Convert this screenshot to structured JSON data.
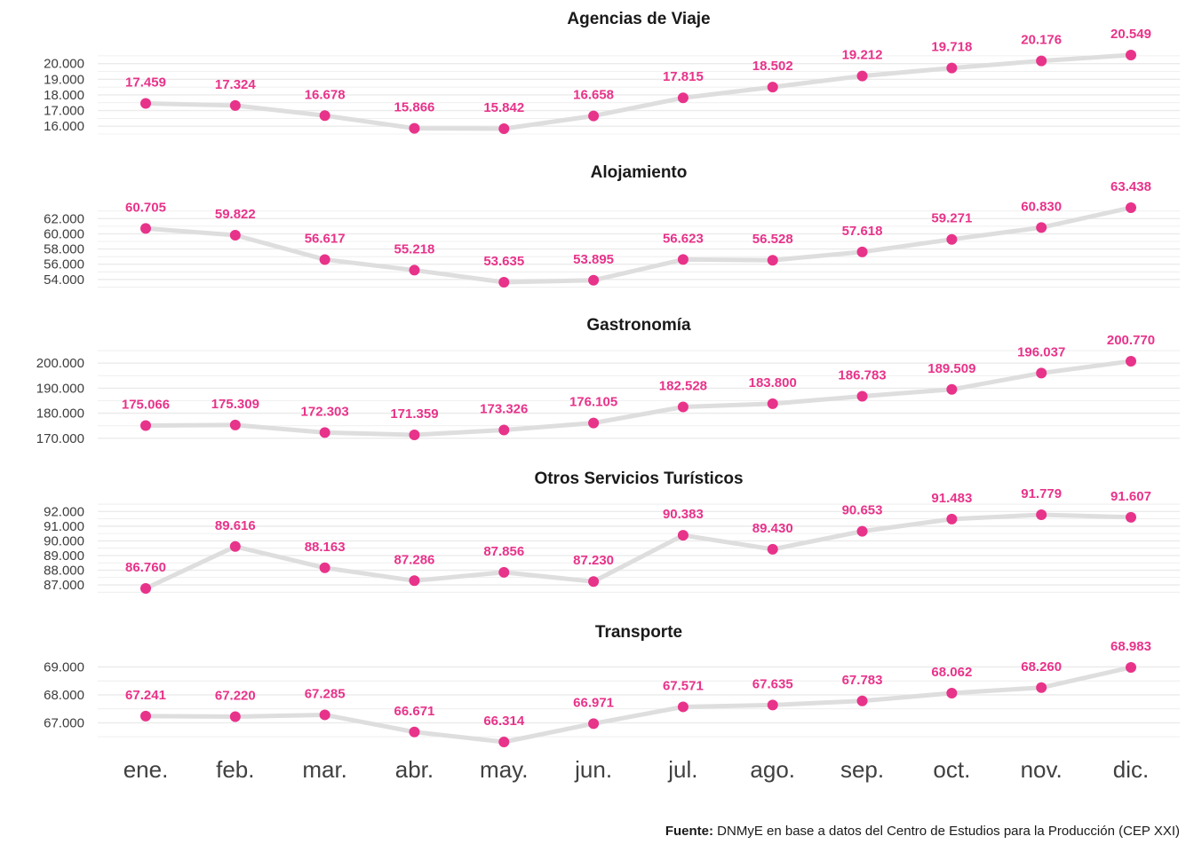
{
  "colors": {
    "point": "#e8338a",
    "label": "#e8338a",
    "line": "#dedede",
    "grid": "#ebebeb"
  },
  "source": {
    "label": "Fuente:",
    "text": " DNMyE en base a datos del Centro de Estudios para la Producción (CEP XXI)"
  },
  "chart_data": [
    {
      "type": "line",
      "title": "Agencias de Viaje",
      "categories": [
        "ene.",
        "feb.",
        "mar.",
        "abr.",
        "may.",
        "jun.",
        "jul.",
        "ago.",
        "sep.",
        "oct.",
        "nov.",
        "dic."
      ],
      "values": [
        17459,
        17324,
        16678,
        15866,
        15842,
        16658,
        17815,
        18502,
        19212,
        19718,
        20176,
        20549
      ],
      "value_labels": [
        "17.459",
        "17.324",
        "16.678",
        "15.866",
        "15.842",
        "16.658",
        "17.815",
        "18.502",
        "19.212",
        "19.718",
        "20.176",
        "20.549"
      ],
      "yticks": [
        16000,
        17000,
        18000,
        19000,
        20000
      ],
      "ytick_labels": [
        "16.000",
        "17.000",
        "18.000",
        "19.000",
        "20.000"
      ],
      "ylim": [
        15842,
        20549
      ],
      "grid": true
    },
    {
      "type": "line",
      "title": "Alojamiento",
      "categories": [
        "ene.",
        "feb.",
        "mar.",
        "abr.",
        "may.",
        "jun.",
        "jul.",
        "ago.",
        "sep.",
        "oct.",
        "nov.",
        "dic."
      ],
      "values": [
        60705,
        59822,
        56617,
        55218,
        53635,
        53895,
        56623,
        56528,
        57618,
        59271,
        60830,
        63438
      ],
      "value_labels": [
        "60.705",
        "59.822",
        "56.617",
        "55.218",
        "53.635",
        "53.895",
        "56.623",
        "56.528",
        "57.618",
        "59.271",
        "60.830",
        "63.438"
      ],
      "yticks": [
        54000,
        56000,
        58000,
        60000,
        62000
      ],
      "ytick_labels": [
        "54.000",
        "56.000",
        "58.000",
        "60.000",
        "62.000"
      ],
      "ylim": [
        53635,
        63438
      ],
      "grid": true
    },
    {
      "type": "line",
      "title": "Gastronomía",
      "categories": [
        "ene.",
        "feb.",
        "mar.",
        "abr.",
        "may.",
        "jun.",
        "jul.",
        "ago.",
        "sep.",
        "oct.",
        "nov.",
        "dic."
      ],
      "values": [
        175066,
        175309,
        172303,
        171359,
        173326,
        176105,
        182528,
        183800,
        186783,
        189509,
        196037,
        200770
      ],
      "value_labels": [
        "175.066",
        "175.309",
        "172.303",
        "171.359",
        "173.326",
        "176.105",
        "182.528",
        "183.800",
        "186.783",
        "189.509",
        "196.037",
        "200.770"
      ],
      "yticks": [
        170000,
        180000,
        190000,
        200000
      ],
      "ytick_labels": [
        "170.000",
        "180.000",
        "190.000",
        "200.000"
      ],
      "ylim": [
        171359,
        200770
      ],
      "grid": true
    },
    {
      "type": "line",
      "title": "Otros Servicios Turísticos",
      "categories": [
        "ene.",
        "feb.",
        "mar.",
        "abr.",
        "may.",
        "jun.",
        "jul.",
        "ago.",
        "sep.",
        "oct.",
        "nov.",
        "dic."
      ],
      "values": [
        86760,
        89616,
        88163,
        87286,
        87856,
        87230,
        90383,
        89430,
        90653,
        91483,
        91779,
        91607
      ],
      "value_labels": [
        "86.760",
        "89.616",
        "88.163",
        "87.286",
        "87.856",
        "87.230",
        "90.383",
        "89.430",
        "90.653",
        "91.483",
        "91.779",
        "91.607"
      ],
      "yticks": [
        87000,
        88000,
        89000,
        90000,
        91000,
        92000
      ],
      "ytick_labels": [
        "87.000",
        "88.000",
        "89.000",
        "90.000",
        "91.000",
        "92.000"
      ],
      "ylim": [
        86760,
        91779
      ],
      "grid": true
    },
    {
      "type": "line",
      "title": "Transporte",
      "categories": [
        "ene.",
        "feb.",
        "mar.",
        "abr.",
        "may.",
        "jun.",
        "jul.",
        "ago.",
        "sep.",
        "oct.",
        "nov.",
        "dic."
      ],
      "values": [
        67241,
        67220,
        67285,
        66671,
        66314,
        66971,
        67571,
        67635,
        67783,
        68062,
        68260,
        68983
      ],
      "value_labels": [
        "67.241",
        "67.220",
        "67.285",
        "66.671",
        "66.314",
        "66.971",
        "67.571",
        "67.635",
        "67.783",
        "68.062",
        "68.260",
        "68.983"
      ],
      "yticks": [
        67000,
        68000,
        69000
      ],
      "ytick_labels": [
        "67.000",
        "68.000",
        "69.000"
      ],
      "ylim": [
        66314,
        68983
      ],
      "grid": true
    }
  ]
}
